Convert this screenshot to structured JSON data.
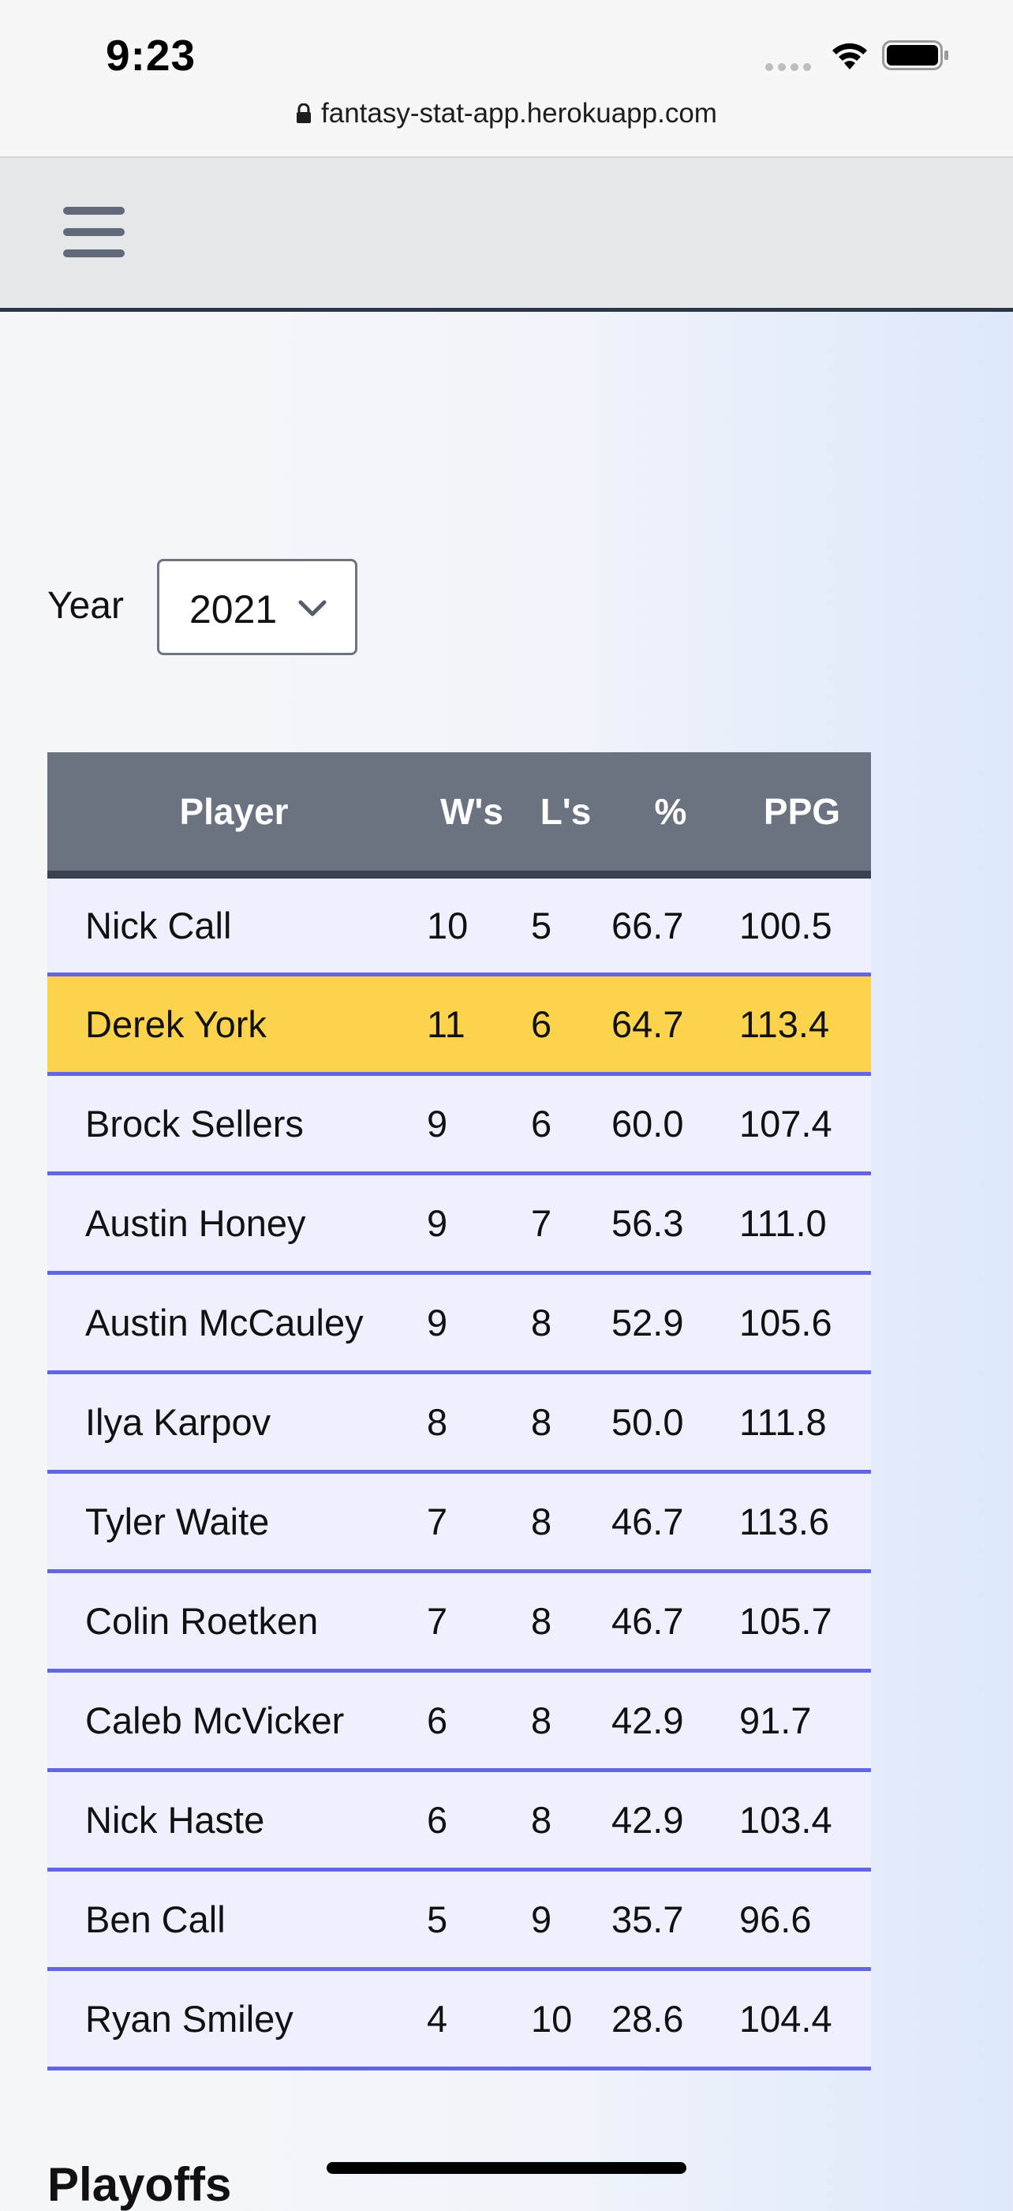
{
  "status_bar": {
    "time": "9:23",
    "url": "fantasy-stat-app.herokuapp.com"
  },
  "year_filter": {
    "label": "Year",
    "selected": "2021"
  },
  "table": {
    "headers": {
      "player": "Player",
      "wins": "W's",
      "losses": "L's",
      "pct": "%",
      "ppg": "PPG"
    },
    "rows": [
      {
        "player": "Nick Call",
        "wins": "10",
        "losses": "5",
        "pct": "66.7",
        "ppg": "100.5",
        "highlight": false
      },
      {
        "player": "Derek York",
        "wins": "11",
        "losses": "6",
        "pct": "64.7",
        "ppg": "113.4",
        "highlight": true
      },
      {
        "player": "Brock Sellers",
        "wins": "9",
        "losses": "6",
        "pct": "60.0",
        "ppg": "107.4",
        "highlight": false
      },
      {
        "player": "Austin Honey",
        "wins": "9",
        "losses": "7",
        "pct": "56.3",
        "ppg": "111.0",
        "highlight": false
      },
      {
        "player": "Austin McCauley",
        "wins": "9",
        "losses": "8",
        "pct": "52.9",
        "ppg": "105.6",
        "highlight": false
      },
      {
        "player": "Ilya Karpov",
        "wins": "8",
        "losses": "8",
        "pct": "50.0",
        "ppg": "111.8",
        "highlight": false
      },
      {
        "player": "Tyler Waite",
        "wins": "7",
        "losses": "8",
        "pct": "46.7",
        "ppg": "113.6",
        "highlight": false
      },
      {
        "player": "Colin Roetken",
        "wins": "7",
        "losses": "8",
        "pct": "46.7",
        "ppg": "105.7",
        "highlight": false
      },
      {
        "player": "Caleb McVicker",
        "wins": "6",
        "losses": "8",
        "pct": "42.9",
        "ppg": "91.7",
        "highlight": false
      },
      {
        "player": "Nick Haste",
        "wins": "6",
        "losses": "8",
        "pct": "42.9",
        "ppg": "103.4",
        "highlight": false
      },
      {
        "player": "Ben Call",
        "wins": "5",
        "losses": "9",
        "pct": "35.7",
        "ppg": "96.6",
        "highlight": false
      },
      {
        "player": "Ryan Smiley",
        "wins": "4",
        "losses": "10",
        "pct": "28.6",
        "ppg": "104.4",
        "highlight": false
      }
    ]
  },
  "sections": {
    "playoffs_heading": "Playoffs"
  },
  "colors": {
    "header_bg": "#6b7280",
    "row_bg": "#eef0fd",
    "highlight_row": "#fcd34d",
    "row_divider": "#6366e0",
    "navbar_bg": "#e6e7ea"
  },
  "icons": {
    "menu": "hamburger-menu-icon",
    "select": "chevron-down-icon",
    "url": "lock-icon",
    "wifi": "wifi-icon",
    "battery": "battery-icon"
  }
}
